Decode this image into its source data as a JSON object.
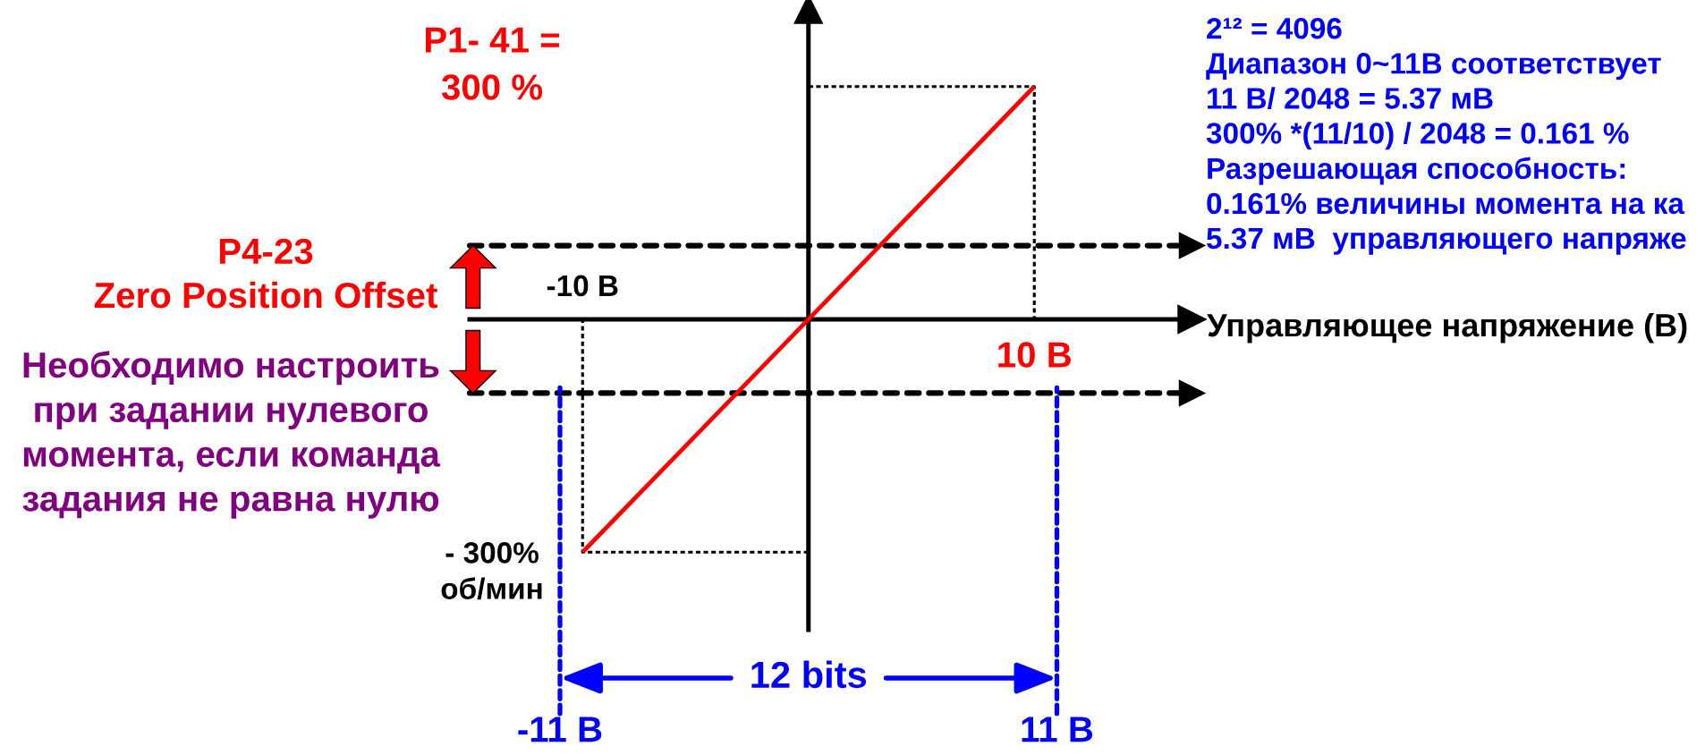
{
  "chart_data": {
    "type": "line",
    "xlabel": "Управляющее напряжение (В)",
    "xlim": [
      -15,
      17
    ],
    "ylim": [
      -400,
      400
    ],
    "xticks": [
      {
        "value": -11,
        "label": "-11 В"
      },
      {
        "value": 11,
        "label": "11 В"
      }
    ],
    "yticks": [
      {
        "value": 300,
        "label": "300 %"
      },
      {
        "value": -300,
        "label": "- 300%"
      }
    ],
    "series": [
      {
        "x": [
          -10,
          10
        ],
        "values": [
          -300,
          300
        ],
        "color": "#ff0000"
      },
      {
        "x": [
          0,
          10,
          10
        ],
        "values": [
          300,
          300,
          0
        ],
        "color": "#000000",
        "line_style": "dotted"
      },
      {
        "x": [
          0,
          -10,
          -10
        ],
        "values": [
          -300,
          -300,
          0
        ],
        "color": "#000000",
        "line_style": "dotted"
      }
    ],
    "ref_lines": [
      {
        "axis": "y",
        "value": 95,
        "color": "#000000",
        "line_style": "dashed"
      },
      {
        "axis": "y",
        "value": -95,
        "color": "#000000",
        "line_style": "dashed"
      },
      {
        "axis": "x",
        "value": -11,
        "color": "#0000ff",
        "line_style": "dashed"
      },
      {
        "axis": "x",
        "value": 11,
        "color": "#0000ff",
        "line_style": "dashed"
      }
    ],
    "annotations": [
      "P4-23\nZero Position Offset",
      "Необходимо настроить\nпри задании нулевого\nмомента, если команда\nзадания не равна нулю",
      "2¹² = 4096\nДиапазон 0~11В соответствует\n11 В/ 2048 = 5.37 мВ\n300% *(11/10) / 2048 = 0.161 %\nРазрешающая способность:\n0.161% величины момента на ка\n5.37 мВ  управляющего напряже",
      "12 bits",
      "P1- 41 =",
      "об/мин",
      {
        "text": "-10 В",
        "x": -10,
        "y": 0
      },
      {
        "text": "10 В",
        "x": 10,
        "y": 0
      }
    ]
  }
}
